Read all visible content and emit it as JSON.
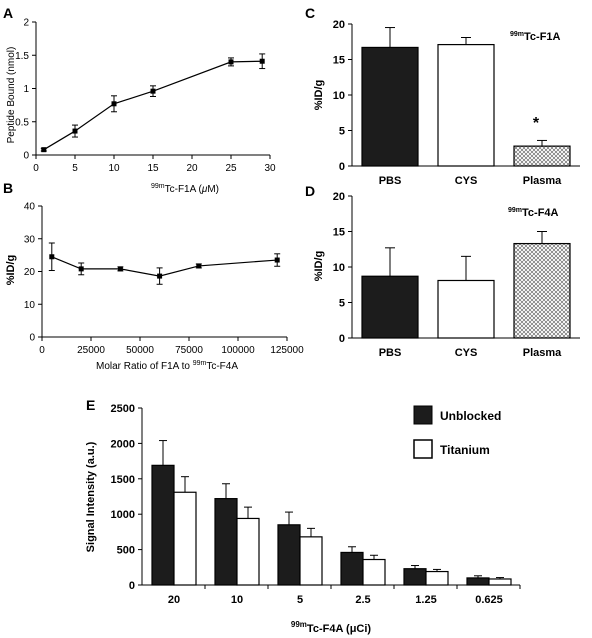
{
  "chart_data": [
    {
      "panel": "A",
      "type": "line",
      "xlabel": "99mTc-F1A (μM)",
      "xlabel_sup": "99m",
      "xlabel_main": "Tc-F1A (",
      "xlabel_mu": "μ",
      "xlabel_end": "M)",
      "ylabel": "Peptide Bound (nmol)",
      "xlim": [
        0,
        30
      ],
      "ylim": [
        0,
        2
      ],
      "xticks": [
        0,
        5,
        10,
        15,
        20,
        25,
        30
      ],
      "yticks": [
        0,
        0.5,
        1,
        1.5,
        2
      ],
      "ytick_labels": [
        "0",
        "0.5",
        "1",
        "1.5",
        "2"
      ],
      "x": [
        1,
        5,
        10,
        15,
        25,
        29
      ],
      "y": [
        0.08,
        0.36,
        0.77,
        0.96,
        1.4,
        1.41
      ],
      "err": [
        0.02,
        0.09,
        0.12,
        0.08,
        0.06,
        0.11
      ]
    },
    {
      "panel": "B",
      "type": "line",
      "xlabel": "Molar Ratio of F1A to 99mTc-F4A",
      "xlabel_main": "Molar Ratio of F1A to ",
      "xlabel_sup": "99m",
      "xlabel_end": "Tc-F4A",
      "ylabel": "%ID/g",
      "xlim": [
        0,
        125000
      ],
      "ylim": [
        0,
        40
      ],
      "xticks": [
        0,
        25000,
        50000,
        75000,
        100000,
        125000
      ],
      "yticks": [
        0,
        10,
        20,
        30,
        40
      ],
      "x": [
        5000,
        20000,
        40000,
        60000,
        80000,
        120000
      ],
      "y": [
        24.5,
        20.8,
        20.8,
        18.6,
        21.7,
        23.5
      ],
      "err": [
        4.2,
        1.8,
        0.6,
        2.5,
        0.6,
        1.9
      ]
    },
    {
      "panel": "C",
      "type": "bar",
      "annotation_sup": "99m",
      "annotation_main": "Tc-F1A",
      "ylabel": "%ID/g",
      "ylim": [
        0,
        20
      ],
      "yticks": [
        0,
        5,
        10,
        15,
        20
      ],
      "categories": [
        "PBS",
        "CYS",
        "Plasma"
      ],
      "values": [
        16.7,
        17.1,
        2.8
      ],
      "err": [
        2.8,
        1.0,
        0.8
      ],
      "styles": [
        "solid",
        "open",
        "hatched"
      ],
      "significance": "*"
    },
    {
      "panel": "D",
      "type": "bar",
      "annotation_sup": "99m",
      "annotation_main": "Tc-F4A",
      "ylabel": "%ID/g",
      "ylim": [
        0,
        20
      ],
      "yticks": [
        0,
        5,
        10,
        15,
        20
      ],
      "categories": [
        "PBS",
        "CYS",
        "Plasma"
      ],
      "values": [
        8.7,
        8.1,
        13.3
      ],
      "err": [
        4.0,
        3.4,
        1.7
      ],
      "styles": [
        "solid",
        "open",
        "hatched"
      ]
    },
    {
      "panel": "E",
      "type": "bar",
      "xlabel": "99mTc-F4A (μCi)",
      "xlabel_sup": "99m",
      "xlabel_main": "Tc-F4A (μCi)",
      "ylabel": "Signal Intensity (a.u.)",
      "ylim": [
        0,
        2500
      ],
      "yticks": [
        0,
        500,
        1000,
        1500,
        2000,
        2500
      ],
      "categories": [
        "20",
        "10",
        "5",
        "2.5",
        "1.25",
        "0.625"
      ],
      "legend_position": "top-right",
      "series": [
        {
          "name": "Unblocked",
          "style": "solid",
          "values": [
            1690,
            1220,
            850,
            460,
            230,
            100
          ],
          "err": [
            350,
            210,
            180,
            80,
            45,
            30
          ]
        },
        {
          "name": "Titanium",
          "style": "open",
          "values": [
            1310,
            940,
            680,
            360,
            190,
            85
          ],
          "err": [
            220,
            160,
            120,
            60,
            30,
            20
          ]
        }
      ]
    }
  ]
}
